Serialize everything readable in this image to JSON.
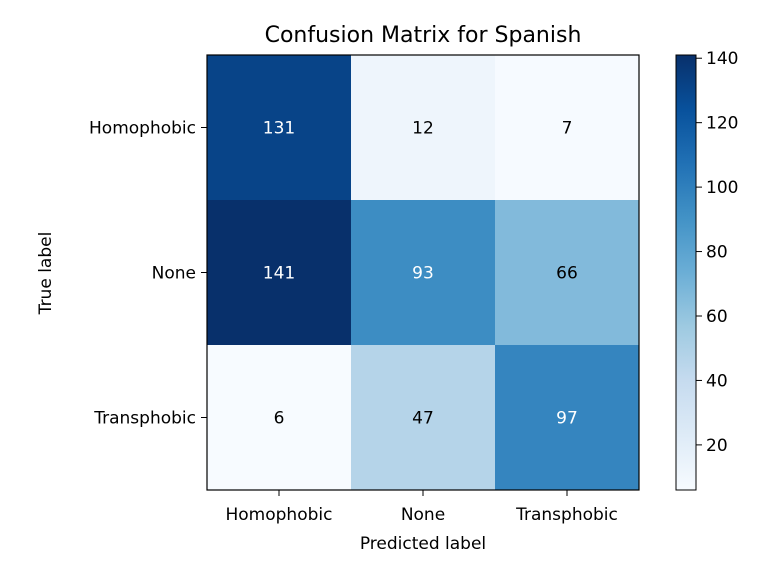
{
  "chart_data": {
    "type": "heatmap",
    "title": "Confusion Matrix for Spanish",
    "xlabel": "Predicted label",
    "ylabel": "True label",
    "x_categories": [
      "Homophobic",
      "None",
      "Transphobic"
    ],
    "y_categories": [
      "Homophobic",
      "None",
      "Transphobic"
    ],
    "values": [
      [
        131,
        12,
        7
      ],
      [
        141,
        93,
        66
      ],
      [
        6,
        47,
        97
      ]
    ],
    "colormap": "Blues",
    "vmin": 6,
    "vmax": 141,
    "colorbar_ticks": [
      20,
      40,
      60,
      80,
      100,
      120,
      140
    ],
    "text_color_light": "#ffffff",
    "text_color_dark": "#000000",
    "grid": false
  }
}
